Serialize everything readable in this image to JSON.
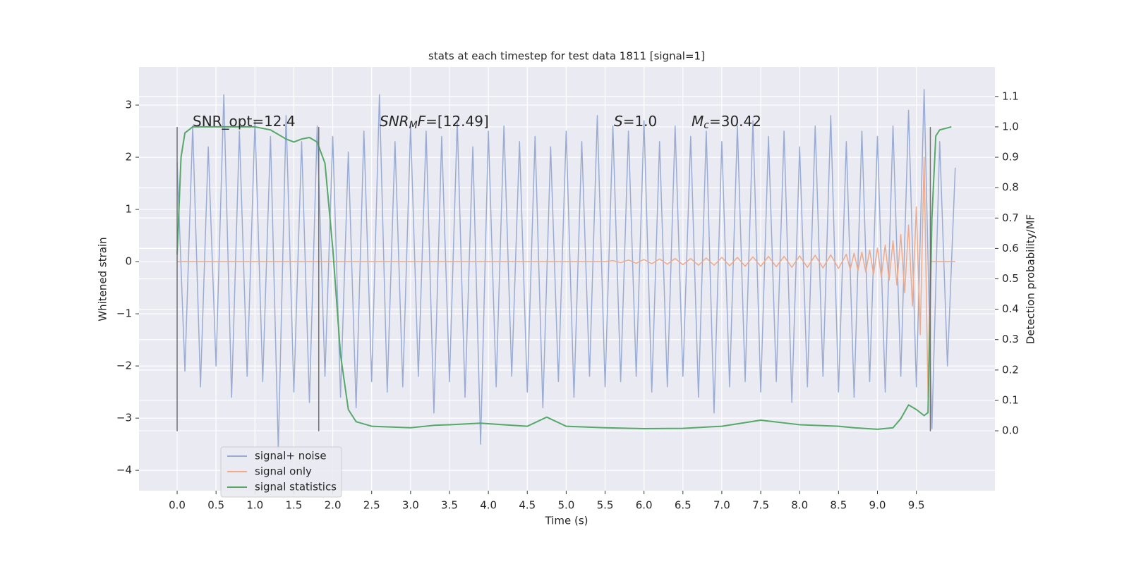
{
  "chart_data": {
    "type": "line",
    "title": "stats at each timestep for test data 1811 [signal=1]",
    "x_label": "Time (s)",
    "y_label": "Whitened strain",
    "y2_label": "Detection probability/MF",
    "xlim": [
      -0.49,
      10.51
    ],
    "ylim": [
      -4.39,
      3.73
    ],
    "y2lim": [
      -0.197,
      1.197
    ],
    "xticks": [
      {
        "value": 0,
        "label": "0.0"
      },
      0.5,
      {
        "value": 1,
        "label": "1.0"
      },
      1.5,
      {
        "value": 2,
        "label": "2.0"
      },
      2.5,
      {
        "value": 3,
        "label": "3.0"
      },
      3.5,
      {
        "value": 4,
        "label": "4.0"
      },
      4.5,
      {
        "value": 5,
        "label": "5.0"
      },
      5.5,
      {
        "value": 6,
        "label": "6.0"
      },
      6.5,
      {
        "value": 7,
        "label": "7.0"
      },
      7.5,
      {
        "value": 8,
        "label": "8.0"
      },
      8.5,
      {
        "value": 9,
        "label": "9.0"
      },
      9.5
    ],
    "yticks": [
      {
        "value": -4,
        "label": "−4"
      },
      {
        "value": -3,
        "label": "−3"
      },
      {
        "value": -2,
        "label": "−2"
      },
      {
        "value": -1,
        "label": "−1"
      },
      0,
      1,
      2,
      3
    ],
    "y2ticks": [
      {
        "value": 0,
        "label": "0.0"
      },
      0.1,
      0.2,
      0.3,
      0.4,
      0.5,
      0.6,
      0.7,
      0.8,
      0.9,
      {
        "value": 1,
        "label": "1.0"
      },
      1.1
    ],
    "grid": true,
    "legend": "lower left",
    "series": [
      {
        "name": "signal+ noise",
        "color": "#9aacd3",
        "x": [
          0.0,
          0.1,
          0.2,
          0.3,
          0.4,
          0.5,
          0.6,
          0.7,
          0.8,
          0.9,
          1.0,
          1.1,
          1.2,
          1.3,
          1.4,
          1.5,
          1.6,
          1.7,
          1.8,
          1.9,
          2.0,
          2.1,
          2.2,
          2.3,
          2.4,
          2.5,
          2.6,
          2.7,
          2.8,
          2.9,
          3.0,
          3.1,
          3.2,
          3.3,
          3.4,
          3.5,
          3.6,
          3.7,
          3.8,
          3.9,
          4.0,
          4.1,
          4.2,
          4.3,
          4.4,
          4.5,
          4.6,
          4.7,
          4.8,
          4.9,
          5.0,
          5.1,
          5.2,
          5.3,
          5.4,
          5.5,
          5.6,
          5.7,
          5.8,
          5.9,
          6.0,
          6.1,
          6.2,
          6.3,
          6.4,
          6.5,
          6.6,
          6.7,
          6.8,
          6.9,
          7.0,
          7.1,
          7.2,
          7.3,
          7.4,
          7.5,
          7.6,
          7.7,
          7.8,
          7.9,
          8.0,
          8.1,
          8.2,
          8.3,
          8.4,
          8.5,
          8.6,
          8.7,
          8.8,
          8.9,
          9.0,
          9.1,
          9.2,
          9.3,
          9.4,
          9.5,
          9.6,
          9.7,
          9.8,
          9.9,
          10.0
        ],
        "values": [
          1.9,
          -2.1,
          2.6,
          -2.4,
          2.2,
          -2.0,
          3.2,
          -2.6,
          2.5,
          -2.2,
          2.7,
          -2.3,
          2.4,
          -3.6,
          2.8,
          -2.5,
          2.3,
          -2.7,
          2.6,
          -2.2,
          2.4,
          -2.6,
          2.1,
          -2.8,
          2.5,
          -2.3,
          3.2,
          -2.5,
          2.3,
          -2.4,
          2.6,
          -2.2,
          2.5,
          -2.9,
          2.4,
          -2.3,
          2.7,
          -2.6,
          2.2,
          -3.5,
          2.5,
          -2.4,
          2.6,
          -2.2,
          2.3,
          -2.5,
          2.4,
          -2.8,
          2.2,
          -2.3,
          2.5,
          -2.6,
          2.3,
          -2.2,
          2.8,
          -2.4,
          2.6,
          -2.3,
          2.5,
          -2.2,
          2.7,
          -2.5,
          2.3,
          -2.4,
          2.6,
          -2.2,
          2.4,
          -2.6,
          2.5,
          -2.9,
          2.3,
          -2.4,
          2.6,
          -2.3,
          2.7,
          -2.5,
          2.4,
          -2.3,
          2.5,
          -2.7,
          2.2,
          -2.4,
          2.6,
          -2.2,
          2.8,
          -2.5,
          2.3,
          -2.6,
          2.5,
          -2.3,
          2.4,
          -2.5,
          2.6,
          -2.2,
          2.9,
          -2.4,
          3.3,
          -3.2,
          2.3,
          -2.0,
          1.8
        ]
      },
      {
        "name": "signal only",
        "color": "#eeaa8a",
        "x": [
          0.0,
          5.5,
          5.6,
          5.7,
          5.8,
          5.9,
          6.0,
          6.1,
          6.2,
          6.3,
          6.4,
          6.5,
          6.6,
          6.7,
          6.8,
          6.9,
          7.0,
          7.1,
          7.2,
          7.3,
          7.4,
          7.5,
          7.6,
          7.7,
          7.8,
          7.9,
          8.0,
          8.1,
          8.2,
          8.3,
          8.4,
          8.5,
          8.6,
          8.65,
          8.7,
          8.75,
          8.8,
          8.85,
          8.9,
          8.95,
          9.0,
          9.05,
          9.1,
          9.15,
          9.2,
          9.25,
          9.3,
          9.35,
          9.4,
          9.45,
          9.5,
          9.55,
          9.6,
          9.65,
          9.68,
          10.0
        ],
        "values": [
          0,
          0,
          0.02,
          -0.02,
          0.03,
          -0.03,
          0.04,
          -0.04,
          0.05,
          -0.05,
          0.06,
          -0.06,
          0.06,
          -0.07,
          0.07,
          -0.07,
          0.08,
          -0.08,
          0.08,
          -0.09,
          0.09,
          -0.09,
          0.1,
          -0.1,
          0.1,
          -0.11,
          0.11,
          -0.11,
          0.12,
          -0.12,
          0.13,
          -0.13,
          0.14,
          -0.15,
          0.16,
          -0.17,
          0.18,
          -0.2,
          0.22,
          -0.24,
          0.26,
          -0.29,
          0.32,
          -0.36,
          0.4,
          -0.45,
          0.52,
          -0.6,
          0.7,
          -0.85,
          1.05,
          -1.4,
          2.0,
          -2.6,
          0,
          0
        ]
      },
      {
        "name": "signal statistics",
        "color": "#55a868",
        "axis": "y2",
        "x": [
          0.0,
          0.05,
          0.1,
          0.2,
          0.5,
          1.0,
          1.2,
          1.4,
          1.5,
          1.6,
          1.7,
          1.8,
          1.9,
          2.0,
          2.1,
          2.2,
          2.3,
          2.5,
          3.0,
          3.3,
          3.5,
          3.9,
          4.2,
          4.5,
          4.75,
          5.0,
          5.5,
          6.0,
          6.5,
          7.0,
          7.5,
          8.0,
          8.5,
          8.7,
          9.0,
          9.2,
          9.3,
          9.4,
          9.5,
          9.6,
          9.65,
          9.7,
          9.75,
          9.8,
          9.95
        ],
        "values": [
          0.58,
          0.9,
          0.98,
          1.0,
          1.0,
          1.0,
          0.99,
          0.96,
          0.95,
          0.96,
          0.965,
          0.95,
          0.88,
          0.6,
          0.25,
          0.07,
          0.03,
          0.015,
          0.01,
          0.018,
          0.02,
          0.025,
          0.02,
          0.015,
          0.045,
          0.015,
          0.01,
          0.007,
          0.008,
          0.015,
          0.035,
          0.02,
          0.015,
          0.01,
          0.005,
          0.01,
          0.04,
          0.085,
          0.07,
          0.05,
          0.06,
          0.7,
          0.97,
          0.99,
          1.0
        ]
      }
    ],
    "vlines": {
      "x": [
        0.0,
        1.82,
        9.68
      ],
      "ymin": -3.25,
      "ymax": 2.58,
      "color": "#707070"
    },
    "annotations": [
      [
        {
          "text": "SNR_opt=12.4"
        }
      ],
      [
        {
          "text": "SNR",
          "italic": true
        },
        {
          "text": "M",
          "italic": true,
          "sub": true
        },
        {
          "text": "F",
          "italic": true
        },
        {
          "text": "=[12.49]"
        }
      ],
      [
        {
          "text": "S",
          "italic": true
        },
        {
          "text": "=1.0"
        }
      ],
      [
        {
          "text": "M",
          "italic": true
        },
        {
          "text": "c",
          "italic": true,
          "sub": true
        },
        {
          "text": "=30.42"
        }
      ]
    ]
  }
}
